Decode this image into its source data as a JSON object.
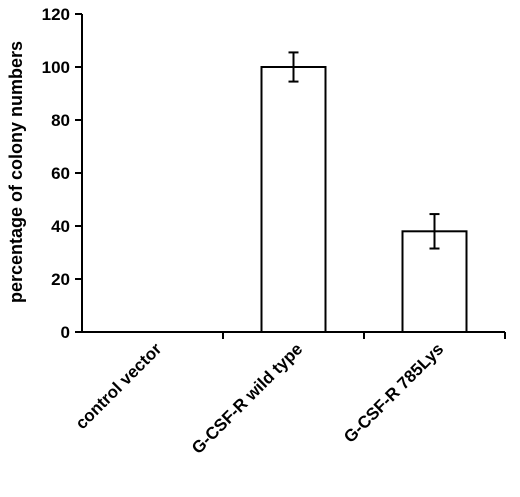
{
  "chart_data": {
    "type": "bar",
    "title": "",
    "xlabel": "",
    "ylabel": "percentage of colony numbers",
    "ylim": [
      0,
      120
    ],
    "yticks": [
      0,
      20,
      40,
      60,
      80,
      100,
      120
    ],
    "categories": [
      "control vector",
      "G-CSF-R wild type",
      "G-CSF-R 785Lys"
    ],
    "values": [
      0,
      100,
      38
    ],
    "errors": [
      0,
      5.5,
      6.5
    ],
    "bar_fill": "#ffffff",
    "bar_stroke": "#000000",
    "grid": false,
    "legend": "none"
  }
}
